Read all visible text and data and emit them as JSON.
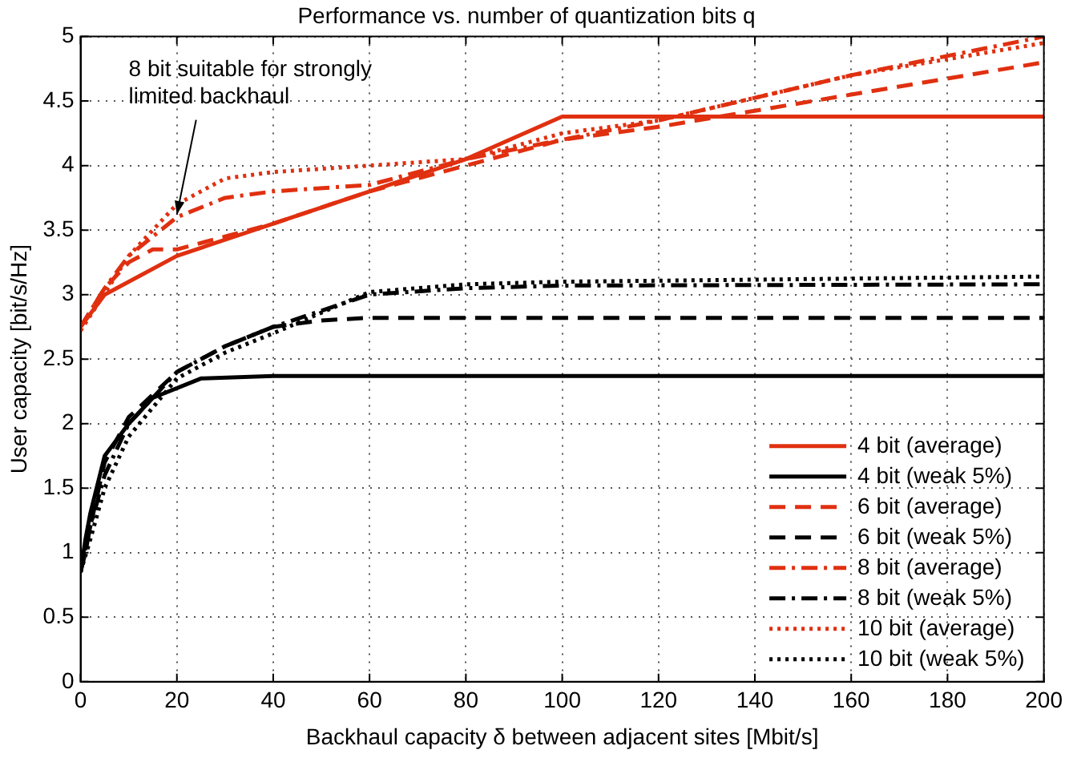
{
  "chart_data": {
    "type": "line",
    "title": "Performance vs. number of quantization bits q",
    "xlabel": "Backhaul capacity δ between adjacent sites [Mbit/s]",
    "ylabel": "User capacity [bit/s/Hz]",
    "xlim": [
      0,
      200
    ],
    "xticks": [
      0,
      20,
      40,
      60,
      80,
      100,
      120,
      140,
      160,
      180,
      200
    ],
    "ylim": [
      0,
      5
    ],
    "yticks": [
      0,
      0.5,
      1,
      1.5,
      2,
      2.5,
      3,
      3.5,
      4,
      4.5,
      5
    ],
    "grid": true,
    "legend": "bottom right",
    "marker": "none",
    "annotations": [
      {
        "text": "8 bit suitable for strongly\nlimited backhaul",
        "x": 20,
        "y": 3.62
      }
    ],
    "series": [
      {
        "name": "4 bit (average)",
        "color": "#e03010",
        "line_style": "solid",
        "x": [
          0,
          5,
          20,
          40,
          60,
          80,
          100,
          120,
          160,
          200
        ],
        "values": [
          2.75,
          3.0,
          3.3,
          3.55,
          3.8,
          4.05,
          4.38,
          4.38,
          4.38,
          4.38
        ]
      },
      {
        "name": "4 bit (weak 5%)",
        "color": "#000000",
        "line_style": "solid",
        "x": [
          0,
          1,
          2,
          5,
          10,
          15,
          25,
          40,
          100,
          200
        ],
        "values": [
          0.85,
          1.1,
          1.3,
          1.75,
          2.0,
          2.2,
          2.35,
          2.37,
          2.37,
          2.37
        ]
      },
      {
        "name": "6 bit (average)",
        "color": "#e03010",
        "line_style": "dashed",
        "x": [
          0,
          5,
          10,
          15,
          20,
          30,
          40,
          60,
          80,
          100,
          120,
          160,
          200
        ],
        "values": [
          2.75,
          3.05,
          3.25,
          3.35,
          3.35,
          3.45,
          3.55,
          3.8,
          4.0,
          4.2,
          4.3,
          4.55,
          4.8
        ]
      },
      {
        "name": "6 bit (weak 5%)",
        "color": "#000000",
        "line_style": "dashed",
        "x": [
          0,
          1,
          2,
          5,
          10,
          20,
          30,
          40,
          50,
          60,
          100,
          200
        ],
        "values": [
          0.85,
          1.0,
          1.2,
          1.7,
          2.05,
          2.4,
          2.6,
          2.75,
          2.8,
          2.82,
          2.82,
          2.82
        ]
      },
      {
        "name": "8 bit (average)",
        "color": "#e03010",
        "line_style": "dashdot",
        "x": [
          0,
          5,
          10,
          20,
          30,
          40,
          60,
          80,
          100,
          120,
          160,
          200
        ],
        "values": [
          2.75,
          3.05,
          3.3,
          3.6,
          3.75,
          3.8,
          3.85,
          4.05,
          4.2,
          4.35,
          4.7,
          5.0
        ]
      },
      {
        "name": "8 bit (weak 5%)",
        "color": "#000000",
        "line_style": "dashdot",
        "x": [
          0,
          2,
          5,
          10,
          20,
          30,
          40,
          60,
          80,
          100,
          200
        ],
        "values": [
          0.85,
          1.2,
          1.6,
          2.0,
          2.4,
          2.6,
          2.75,
          3.0,
          3.05,
          3.07,
          3.08
        ]
      },
      {
        "name": "10 bit (average)",
        "color": "#e03010",
        "line_style": "dotted",
        "x": [
          0,
          10,
          20,
          30,
          40,
          60,
          80,
          100,
          120,
          160,
          200
        ],
        "values": [
          2.72,
          3.3,
          3.7,
          3.9,
          3.95,
          4.0,
          4.05,
          4.25,
          4.35,
          4.7,
          4.95
        ]
      },
      {
        "name": "10 bit (weak 5%)",
        "color": "#000000",
        "line_style": "dotted",
        "x": [
          0,
          2,
          5,
          10,
          20,
          30,
          40,
          60,
          80,
          100,
          200
        ],
        "values": [
          0.85,
          1.1,
          1.5,
          1.9,
          2.35,
          2.55,
          2.7,
          3.02,
          3.08,
          3.1,
          3.14
        ]
      }
    ]
  }
}
